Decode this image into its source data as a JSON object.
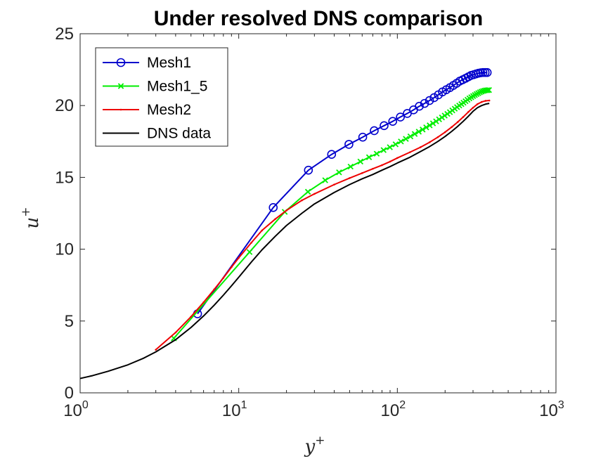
{
  "chart_data": {
    "type": "line",
    "title": "Under resolved DNS comparison",
    "xlabel": "y",
    "xlabel_sup": "+",
    "ylabel": "u",
    "ylabel_sup": "+",
    "x_scale": "log",
    "xlim": [
      1,
      1000
    ],
    "ylim": [
      0,
      25
    ],
    "grid": false,
    "legend_position": "top-left",
    "x_ticks": [
      {
        "value": 1,
        "base": "10",
        "exp": "0"
      },
      {
        "value": 10,
        "base": "10",
        "exp": "1"
      },
      {
        "value": 100,
        "base": "10",
        "exp": "2"
      },
      {
        "value": 1000,
        "base": "10",
        "exp": "3"
      }
    ],
    "y_ticks": [
      {
        "value": 0,
        "label": "0"
      },
      {
        "value": 5,
        "label": "5"
      },
      {
        "value": 10,
        "label": "10"
      },
      {
        "value": 15,
        "label": "15"
      },
      {
        "value": 20,
        "label": "20"
      },
      {
        "value": 25,
        "label": "25"
      }
    ],
    "series": [
      {
        "name": "Mesh1",
        "color": "#0000cc",
        "marker": "circle",
        "x": [
          5.5,
          16.5,
          27.5,
          38.5,
          49.5,
          60.5,
          71.5,
          82.5,
          93.5,
          104.5,
          115.5,
          126.5,
          137.5,
          148.5,
          159.5,
          170.5,
          181.5,
          192.5,
          203.5,
          214.5,
          225.5,
          236.5,
          247.5,
          258.5,
          269.5,
          280.5,
          291.5,
          302.5,
          313.5,
          324.5,
          335.5,
          346.5,
          357.5,
          368.5
        ],
        "y": [
          5.5,
          12.9,
          15.5,
          16.6,
          17.3,
          17.8,
          18.25,
          18.6,
          18.9,
          19.2,
          19.45,
          19.7,
          19.95,
          20.15,
          20.35,
          20.55,
          20.75,
          20.95,
          21.1,
          21.25,
          21.4,
          21.55,
          21.7,
          21.8,
          21.9,
          22.0,
          22.1,
          22.15,
          22.2,
          22.25,
          22.28,
          22.3,
          22.3,
          22.3
        ]
      },
      {
        "name": "Mesh1_5",
        "color": "#00ee00",
        "marker": "x",
        "x": [
          3.9,
          11.7,
          19.5,
          27.3,
          35.1,
          42.9,
          50.7,
          58.5,
          66.3,
          74.1,
          81.9,
          89.7,
          97.5,
          105.3,
          113.1,
          120.9,
          128.7,
          136.5,
          144.3,
          152.1,
          159.9,
          167.7,
          175.5,
          183.3,
          191.1,
          198.9,
          206.7,
          214.5,
          222.3,
          230.1,
          237.9,
          245.7,
          253.5,
          261.3,
          269.1,
          276.9,
          284.7,
          292.5,
          300.3,
          308.1,
          315.9,
          323.7,
          331.5,
          339.3,
          347.1,
          354.9,
          362.7,
          370.5,
          378.3
        ],
        "y": [
          3.8,
          9.8,
          12.6,
          14.0,
          14.8,
          15.35,
          15.75,
          16.1,
          16.4,
          16.65,
          16.9,
          17.1,
          17.3,
          17.5,
          17.68,
          17.85,
          18.02,
          18.18,
          18.33,
          18.48,
          18.62,
          18.76,
          18.9,
          19.04,
          19.17,
          19.3,
          19.42,
          19.54,
          19.66,
          19.78,
          19.89,
          20.0,
          20.1,
          20.2,
          20.3,
          20.4,
          20.5,
          20.58,
          20.66,
          20.73,
          20.8,
          20.86,
          20.92,
          20.97,
          21.01,
          21.04,
          21.06,
          21.07,
          21.08
        ]
      },
      {
        "name": "Mesh2",
        "color": "#ee0000",
        "marker": "dot",
        "x": [
          3.0,
          4,
          5,
          6,
          7,
          8,
          9,
          10,
          12,
          14,
          17,
          20,
          25,
          30,
          40,
          50,
          60,
          70,
          80,
          90,
          100,
          120,
          140,
          160,
          180,
          200,
          220,
          240,
          260,
          280,
          300,
          320,
          340,
          360,
          380
        ],
        "y": [
          3.0,
          4.2,
          5.3,
          6.3,
          7.2,
          8.0,
          8.75,
          9.4,
          10.45,
          11.3,
          12.1,
          12.7,
          13.4,
          13.85,
          14.5,
          14.95,
          15.3,
          15.6,
          15.85,
          16.1,
          16.35,
          16.75,
          17.1,
          17.45,
          17.8,
          18.15,
          18.5,
          18.85,
          19.2,
          19.55,
          19.85,
          20.1,
          20.25,
          20.33,
          20.35
        ]
      },
      {
        "name": "DNS data",
        "color": "#000000",
        "marker": "none",
        "x": [
          1.0,
          1.2,
          1.5,
          2.0,
          2.5,
          3.0,
          4.0,
          5.0,
          6.0,
          7.0,
          8.0,
          9.0,
          10,
          12,
          14,
          17,
          20,
          25,
          30,
          40,
          50,
          60,
          70,
          80,
          90,
          100,
          120,
          140,
          160,
          180,
          200,
          220,
          240,
          260,
          280,
          300,
          320,
          340,
          360,
          380
        ],
        "y": [
          1.0,
          1.2,
          1.5,
          1.95,
          2.4,
          2.85,
          3.7,
          4.55,
          5.35,
          6.1,
          6.8,
          7.45,
          8.05,
          9.1,
          9.95,
          10.9,
          11.65,
          12.5,
          13.15,
          13.95,
          14.5,
          14.9,
          15.2,
          15.5,
          15.75,
          16.0,
          16.4,
          16.8,
          17.15,
          17.5,
          17.85,
          18.2,
          18.55,
          18.9,
          19.25,
          19.6,
          19.85,
          20.0,
          20.1,
          20.15
        ]
      }
    ]
  }
}
